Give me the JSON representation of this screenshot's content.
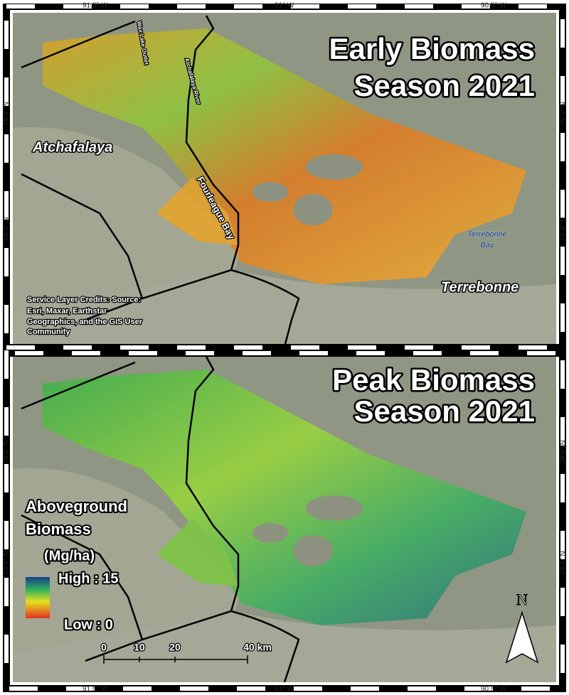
{
  "frame": {
    "top_labels": [
      "91.5° W",
      "91° W",
      "90.5° W"
    ],
    "bottom_labels": [
      "91.5° W",
      "91° W",
      "90.5° W"
    ]
  },
  "panels": [
    {
      "title": [
        "Early Biomass",
        "Season 2021"
      ],
      "lat_labels": [
        "29.5° N",
        "29.3° N"
      ],
      "places": [
        "Atchafalaya",
        "Terrebonne",
        "Fourleague Bay",
        [
          "Terrebonne",
          "Bay"
        ],
        "Wax Lake Outlet",
        "Atchafalaya River"
      ],
      "credits": [
        "Service Layer Credits: Source:",
        "Esri, Maxar, Earthstar",
        "Geographics, and the GIS User",
        "Community"
      ]
    },
    {
      "title": [
        "Peak Biomass",
        "Season 2021"
      ],
      "lat_labels": [
        "29.5° N",
        "29.3° N"
      ]
    }
  ],
  "legend": {
    "title": [
      "Aboveground",
      "Biomass"
    ],
    "units": "(Mg/ha)",
    "high": "High : 15",
    "low": "Low : 0"
  },
  "scale_bar": [
    "0",
    "10",
    "20",
    "40 km"
  ],
  "north_arrow": "N"
}
